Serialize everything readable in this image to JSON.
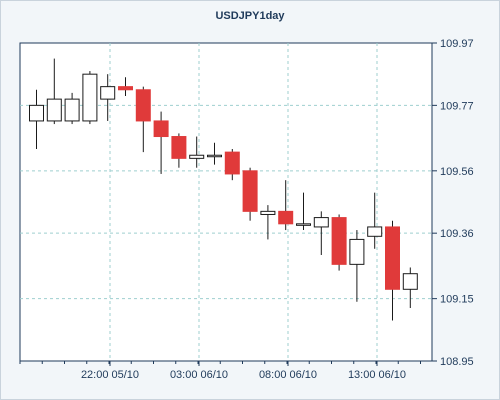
{
  "chart_data": {
    "type": "candlestick",
    "title": "USDJPY1day",
    "ylim": [
      108.95,
      109.97
    ],
    "y_ticks": [
      "109.97",
      "109.77",
      "109.56",
      "109.36",
      "109.15",
      "108.95"
    ],
    "x_ticks": [
      "22:00 05/10",
      "03:00 06/10",
      "08:00 06/10",
      "13:00 06/10"
    ],
    "grid": true,
    "colors": {
      "up": "#ffffff",
      "down": "#e03a3a",
      "outline": "#1a1a1a",
      "grid": "#9fcfcf",
      "axis": "#1f3a5a"
    },
    "candles": [
      {
        "open": 109.72,
        "high": 109.82,
        "low": 109.63,
        "close": 109.77
      },
      {
        "open": 109.72,
        "high": 109.92,
        "low": 109.71,
        "close": 109.79
      },
      {
        "open": 109.72,
        "high": 109.81,
        "low": 109.71,
        "close": 109.79
      },
      {
        "open": 109.72,
        "high": 109.88,
        "low": 109.71,
        "close": 109.87
      },
      {
        "open": 109.79,
        "high": 109.87,
        "low": 109.72,
        "close": 109.83
      },
      {
        "open": 109.83,
        "high": 109.86,
        "low": 109.8,
        "close": 109.82
      },
      {
        "open": 109.82,
        "high": 109.83,
        "low": 109.62,
        "close": 109.72
      },
      {
        "open": 109.72,
        "high": 109.75,
        "low": 109.55,
        "close": 109.67
      },
      {
        "open": 109.67,
        "high": 109.68,
        "low": 109.57,
        "close": 109.6
      },
      {
        "open": 109.6,
        "high": 109.67,
        "low": 109.57,
        "close": 109.61
      },
      {
        "open": 109.61,
        "high": 109.65,
        "low": 109.58,
        "close": 109.61
      },
      {
        "open": 109.62,
        "high": 109.63,
        "low": 109.53,
        "close": 109.55
      },
      {
        "open": 109.56,
        "high": 109.57,
        "low": 109.4,
        "close": 109.43
      },
      {
        "open": 109.42,
        "high": 109.45,
        "low": 109.34,
        "close": 109.43
      },
      {
        "open": 109.43,
        "high": 109.53,
        "low": 109.37,
        "close": 109.39
      },
      {
        "open": 109.39,
        "high": 109.49,
        "low": 109.37,
        "close": 109.39
      },
      {
        "open": 109.38,
        "high": 109.43,
        "low": 109.29,
        "close": 109.41
      },
      {
        "open": 109.41,
        "high": 109.42,
        "low": 109.24,
        "close": 109.26
      },
      {
        "open": 109.26,
        "high": 109.37,
        "low": 109.14,
        "close": 109.34
      },
      {
        "open": 109.35,
        "high": 109.49,
        "low": 109.31,
        "close": 109.38
      },
      {
        "open": 109.38,
        "high": 109.4,
        "low": 109.08,
        "close": 109.18
      },
      {
        "open": 109.18,
        "high": 109.25,
        "low": 109.12,
        "close": 109.23
      }
    ]
  }
}
